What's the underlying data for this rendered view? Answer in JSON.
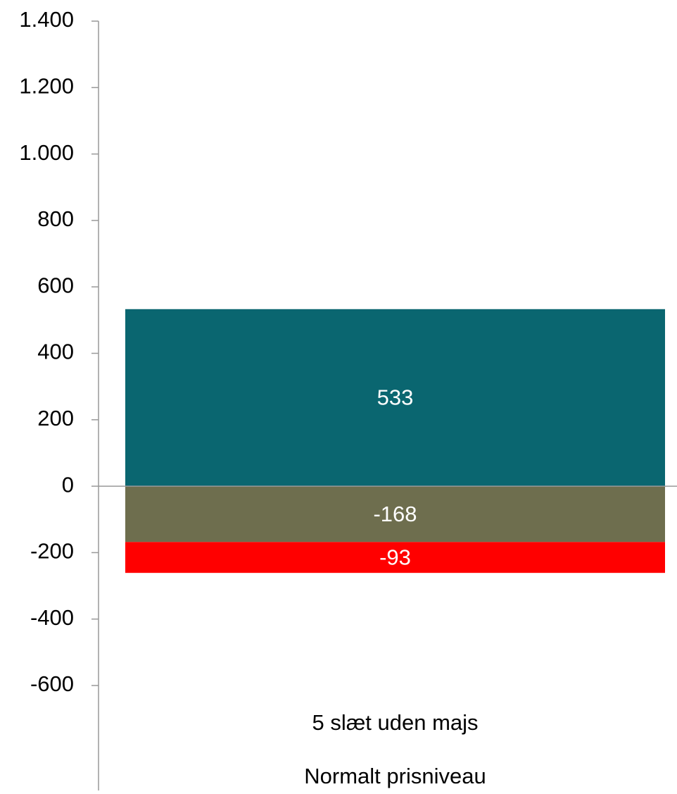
{
  "chart_data": {
    "type": "stacked_bar",
    "categories": [
      "5 slæt uden majs"
    ],
    "category_group": [
      "Normalt prisniveau"
    ],
    "series": [
      {
        "color": "#0a6670",
        "values": [
          533
        ]
      },
      {
        "color": "#6e6e4e",
        "values": [
          -168
        ]
      },
      {
        "color": "#ff0000",
        "values": [
          -93
        ]
      }
    ],
    "ylim": [
      -600,
      1400
    ],
    "yticks": [
      -600,
      -400,
      -200,
      0,
      200,
      400,
      600,
      800,
      {
        "value": 1000,
        "label": "1.000"
      },
      {
        "value": 1200,
        "label": "1.200"
      },
      {
        "value": 1400,
        "label": "1.400"
      }
    ],
    "grid": false,
    "value_label_color": "#ffffff"
  }
}
